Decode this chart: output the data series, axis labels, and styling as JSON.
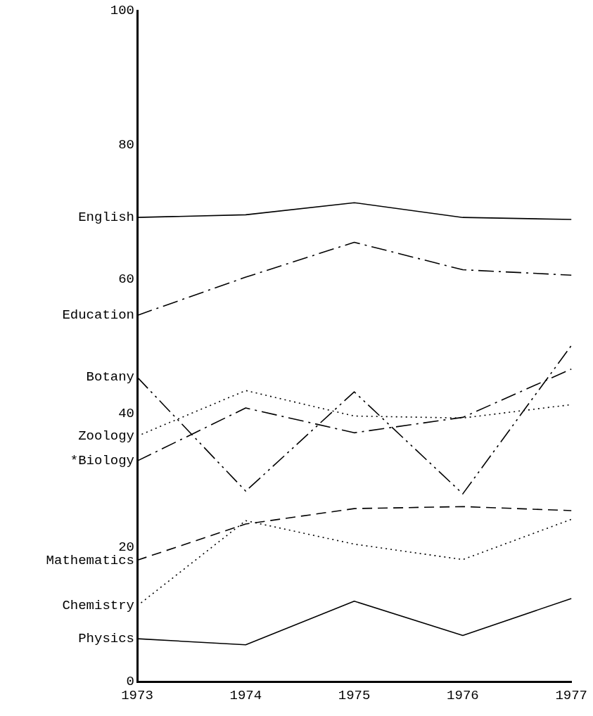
{
  "chart_data": {
    "type": "line",
    "categories": [
      "1973",
      "1974",
      "1975",
      "1976",
      "1977"
    ],
    "ylim": [
      0,
      100
    ],
    "yticks": [
      0,
      20,
      40,
      60,
      80,
      100
    ],
    "grid": false,
    "legend": false,
    "marker": "none",
    "series": [
      {
        "name": "English",
        "color": "#000000",
        "line_style": "solid",
        "values": [
          69.2,
          69.6,
          71.4,
          69.2,
          68.9
        ]
      },
      {
        "name": "Education",
        "color": "#000000",
        "line_style": "dashdot",
        "values": [
          54.6,
          60.3,
          65.5,
          61.4,
          60.6
        ]
      },
      {
        "name": "Botany",
        "color": "#000000",
        "line_style": "dashdotdot",
        "values": [
          45.4,
          28.4,
          43.2,
          28.0,
          50.1
        ]
      },
      {
        "name": "Zoology",
        "color": "#000000",
        "line_style": "dotted",
        "values": [
          36.6,
          43.4,
          39.6,
          39.3,
          41.3
        ]
      },
      {
        "name": "*Biology",
        "color": "#000000",
        "line_style": "dashdot",
        "values": [
          32.9,
          40.8,
          37.1,
          39.4,
          46.6
        ]
      },
      {
        "name": "Mathematics",
        "color": "#000000",
        "line_style": "dashed",
        "values": [
          18.1,
          23.5,
          25.8,
          26.1,
          25.5
        ]
      },
      {
        "name": "Chemistry",
        "color": "#000000",
        "line_style": "dotted",
        "values": [
          11.3,
          24.0,
          20.5,
          18.2,
          24.2
        ]
      },
      {
        "name": "Physics",
        "color": "#000000",
        "line_style": "solid",
        "values": [
          6.4,
          5.5,
          12.0,
          6.9,
          12.4
        ]
      }
    ]
  }
}
